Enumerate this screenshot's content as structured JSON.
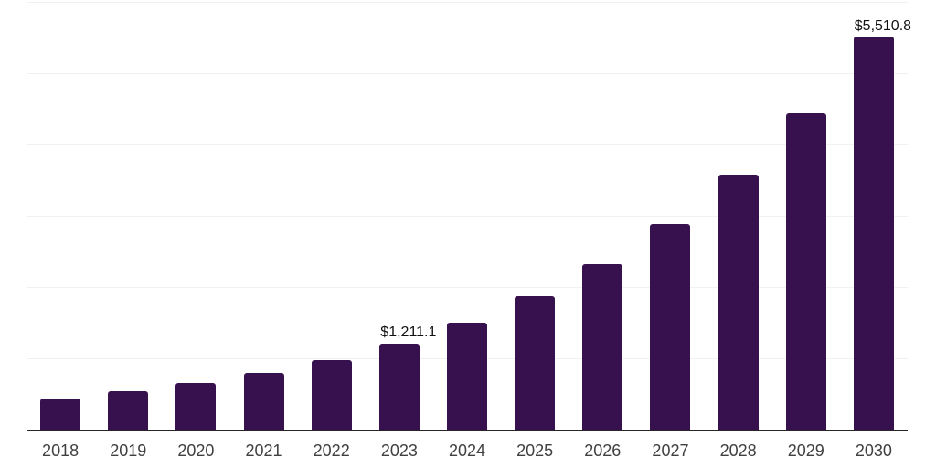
{
  "chart_data": {
    "type": "bar",
    "title": "",
    "xlabel": "",
    "ylabel": "",
    "categories": [
      "2018",
      "2019",
      "2020",
      "2021",
      "2022",
      "2023",
      "2024",
      "2025",
      "2026",
      "2027",
      "2028",
      "2029",
      "2030"
    ],
    "values": [
      435.0,
      540.2,
      655.3,
      801.5,
      970.4,
      1211.1,
      1503.8,
      1867.3,
      2318.6,
      2879.0,
      3574.9,
      4438.9,
      5510.8
    ],
    "data_labels": {
      "2023": "$1,211.1",
      "2030": "$5,510.8"
    },
    "ylim": [
      0,
      6000
    ],
    "gridline_interval": 1000,
    "grid": true,
    "legend": "none",
    "y_axis_ticks_visible": false
  },
  "style": {
    "bar_color": "#37114E",
    "axis_color": "#262626",
    "grid_color": "#f0f0f0",
    "tick_label_color": "#404040",
    "data_label_color": "#111111",
    "background_color": "#ffffff"
  }
}
